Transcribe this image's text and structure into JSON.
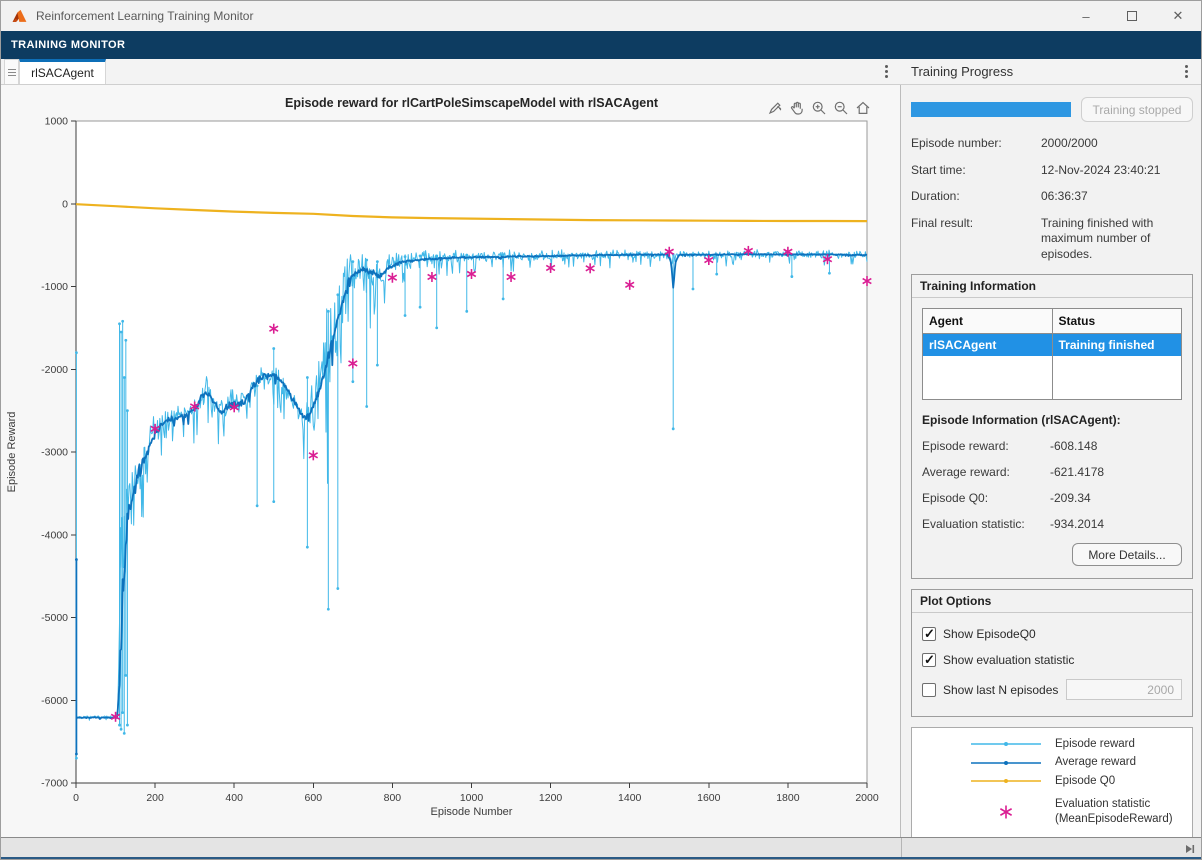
{
  "window": {
    "title": "Reinforcement Learning Training Monitor"
  },
  "ribbon": {
    "label": "TRAINING MONITOR"
  },
  "tabs": {
    "document_tab": "rlSACAgent"
  },
  "axes_toolbar": {
    "icons": [
      "export-icon",
      "pan-hand-icon",
      "zoom-in-icon",
      "zoom-out-icon",
      "home-icon"
    ]
  },
  "training_progress": {
    "title": "Training Progress",
    "progress_percent": 100,
    "stop_button_label": "Training stopped",
    "fields": [
      {
        "label": "Episode number:",
        "value": "2000/2000"
      },
      {
        "label": "Start time:",
        "value": "12-Nov-2024 23:40:21"
      },
      {
        "label": "Duration:",
        "value": "06:36:37"
      },
      {
        "label": "Final result:",
        "value": "Training finished with maximum number of episodes."
      }
    ]
  },
  "training_information": {
    "title": "Training Information",
    "table": {
      "columns": [
        "Agent",
        "Status"
      ],
      "rows": [
        {
          "agent": "rlSACAgent",
          "status": "Training finished",
          "selected": true
        }
      ]
    },
    "episode_info_title": "Episode Information (rlSACAgent):",
    "stats": [
      {
        "label": "Episode reward:",
        "value": "-608.148"
      },
      {
        "label": "Average reward:",
        "value": "-621.4178"
      },
      {
        "label": "Episode Q0:",
        "value": "-209.34"
      },
      {
        "label": "Evaluation statistic:",
        "value": "-934.2014"
      }
    ],
    "more_details_label": "More Details..."
  },
  "plot_options": {
    "title": "Plot Options",
    "checkboxes": [
      {
        "label": "Show EpisodeQ0",
        "checked": true
      },
      {
        "label": "Show evaluation statistic",
        "checked": true
      },
      {
        "label": "Show last N episodes",
        "checked": false
      }
    ],
    "last_n_value": "2000"
  },
  "legend": {
    "entries": [
      {
        "label": "Episode reward",
        "color": "#41b8e8",
        "marker": "line-dot"
      },
      {
        "label": "Average reward",
        "color": "#0d72bd",
        "marker": "line-dot"
      },
      {
        "label": "Episode Q0",
        "color": "#eeb21f",
        "marker": "line-dot"
      },
      {
        "label": "Evaluation statistic",
        "label2": "(MeanEpisodeReward)",
        "color": "#da1e93",
        "marker": "asterisk"
      }
    ]
  },
  "chart_data": {
    "type": "line",
    "title": "Episode reward for rlCartPoleSimscapeModel with rlSACAgent",
    "xlabel": "Episode Number",
    "ylabel": "Episode Reward",
    "xlim": [
      0,
      2000
    ],
    "ylim": [
      -7000,
      1000
    ],
    "xticks": [
      0,
      200,
      400,
      600,
      800,
      1000,
      1200,
      1400,
      1600,
      1800,
      2000
    ],
    "yticks": [
      1000,
      0,
      -1000,
      -2000,
      -3000,
      -4000,
      -5000,
      -6000,
      -7000
    ],
    "grid": false,
    "legend_position": "external-panel",
    "series": [
      {
        "name": "Episode reward",
        "color": "#41b8e8",
        "kind": "noisy-line",
        "anchors": [
          [
            0,
            -6200,
            40
          ],
          [
            105,
            -6200,
            40
          ],
          [
            112,
            -4500,
            1800
          ],
          [
            130,
            -3700,
            900
          ],
          [
            160,
            -3200,
            700
          ],
          [
            200,
            -2750,
            500
          ],
          [
            240,
            -2600,
            450
          ],
          [
            280,
            -2550,
            420
          ],
          [
            300,
            -2450,
            420
          ],
          [
            330,
            -2280,
            450
          ],
          [
            355,
            -2500,
            500
          ],
          [
            380,
            -2430,
            480
          ],
          [
            410,
            -2430,
            450
          ],
          [
            440,
            -2260,
            400
          ],
          [
            470,
            -2090,
            350
          ],
          [
            500,
            -2080,
            320
          ],
          [
            530,
            -2230,
            380
          ],
          [
            560,
            -2500,
            500
          ],
          [
            585,
            -2570,
            600
          ],
          [
            605,
            -2380,
            900
          ],
          [
            625,
            -2050,
            1400
          ],
          [
            645,
            -1700,
            1600
          ],
          [
            665,
            -1250,
            1500
          ],
          [
            685,
            -950,
            900
          ],
          [
            705,
            -820,
            600
          ],
          [
            730,
            -800,
            650
          ],
          [
            760,
            -880,
            650
          ],
          [
            790,
            -760,
            450
          ],
          [
            820,
            -680,
            300
          ],
          [
            860,
            -660,
            250
          ],
          [
            900,
            -650,
            220
          ],
          [
            950,
            -640,
            200
          ],
          [
            1000,
            -635,
            190
          ],
          [
            1100,
            -630,
            170
          ],
          [
            1200,
            -625,
            160
          ],
          [
            1300,
            -620,
            150
          ],
          [
            1400,
            -615,
            150
          ],
          [
            1500,
            -612,
            140
          ],
          [
            1600,
            -615,
            130
          ],
          [
            1700,
            -610,
            130
          ],
          [
            1800,
            -612,
            130
          ],
          [
            1900,
            -610,
            140
          ],
          [
            2000,
            -608,
            130
          ]
        ],
        "spikes": [
          [
            1,
            -1800,
            -6700
          ],
          [
            110,
            -1450,
            -6300
          ],
          [
            114,
            -1550,
            -6350
          ],
          [
            118,
            -1420,
            -6150
          ],
          [
            122,
            -2100,
            -6400
          ],
          [
            126,
            -1650,
            -5700
          ],
          [
            130,
            -2500,
            -6300
          ],
          [
            458,
            -2200,
            -3650
          ],
          [
            500,
            -1750,
            -3600
          ],
          [
            585,
            -2100,
            -4150
          ],
          [
            638,
            -1300,
            -4900
          ],
          [
            662,
            -1100,
            -4650
          ],
          [
            700,
            -700,
            -2150
          ],
          [
            735,
            -680,
            -2450
          ],
          [
            762,
            -700,
            -1950
          ],
          [
            832,
            -640,
            -1350
          ],
          [
            870,
            -630,
            -1250
          ],
          [
            912,
            -630,
            -1500
          ],
          [
            988,
            -620,
            -1300
          ],
          [
            1080,
            -620,
            -1150
          ],
          [
            1510,
            -612,
            -2720
          ],
          [
            1560,
            -615,
            -1030
          ],
          [
            1620,
            -615,
            -850
          ],
          [
            1810,
            -612,
            -880
          ],
          [
            1905,
            -610,
            -840
          ]
        ]
      },
      {
        "name": "Average reward",
        "color": "#0d72bd",
        "kind": "noisy-line",
        "anchors": [
          [
            0,
            -6210,
            15
          ],
          [
            105,
            -6210,
            15
          ],
          [
            109,
            -5900,
            600
          ],
          [
            113,
            -5400,
            900
          ],
          [
            118,
            -4900,
            1100
          ],
          [
            124,
            -4400,
            1000
          ],
          [
            130,
            -3800,
            500
          ],
          [
            140,
            -3650,
            300
          ],
          [
            155,
            -3300,
            250
          ],
          [
            175,
            -3050,
            200
          ],
          [
            200,
            -2760,
            150
          ],
          [
            230,
            -2620,
            120
          ],
          [
            260,
            -2590,
            110
          ],
          [
            285,
            -2540,
            110
          ],
          [
            305,
            -2430,
            120
          ],
          [
            330,
            -2270,
            120
          ],
          [
            350,
            -2420,
            130
          ],
          [
            368,
            -2540,
            120
          ],
          [
            385,
            -2430,
            120
          ],
          [
            405,
            -2430,
            120
          ],
          [
            425,
            -2400,
            110
          ],
          [
            445,
            -2230,
            110
          ],
          [
            465,
            -2110,
            100
          ],
          [
            485,
            -2050,
            90
          ],
          [
            505,
            -2090,
            90
          ],
          [
            525,
            -2170,
            100
          ],
          [
            545,
            -2330,
            110
          ],
          [
            565,
            -2520,
            110
          ],
          [
            580,
            -2600,
            110
          ],
          [
            595,
            -2500,
            110
          ],
          [
            610,
            -2330,
            140
          ],
          [
            622,
            -2150,
            200
          ],
          [
            635,
            -1900,
            250
          ],
          [
            648,
            -1680,
            260
          ],
          [
            660,
            -1450,
            260
          ],
          [
            672,
            -1220,
            240
          ],
          [
            684,
            -1020,
            200
          ],
          [
            696,
            -880,
            150
          ],
          [
            710,
            -830,
            110
          ],
          [
            730,
            -790,
            100
          ],
          [
            750,
            -830,
            110
          ],
          [
            770,
            -870,
            100
          ],
          [
            790,
            -780,
            80
          ],
          [
            815,
            -710,
            60
          ],
          [
            845,
            -690,
            50
          ],
          [
            880,
            -670,
            40
          ],
          [
            920,
            -660,
            35
          ],
          [
            970,
            -650,
            30
          ],
          [
            1030,
            -645,
            28
          ],
          [
            1100,
            -638,
            26
          ],
          [
            1200,
            -630,
            24
          ],
          [
            1300,
            -622,
            22
          ],
          [
            1400,
            -617,
            20
          ],
          [
            1495,
            -612,
            18
          ],
          [
            1505,
            -700,
            60
          ],
          [
            1510,
            -1020,
            30
          ],
          [
            1516,
            -700,
            60
          ],
          [
            1525,
            -615,
            18
          ],
          [
            1600,
            -616,
            16
          ],
          [
            1700,
            -611,
            16
          ],
          [
            1800,
            -614,
            16
          ],
          [
            1900,
            -612,
            16
          ],
          [
            2000,
            -621,
            14
          ]
        ],
        "spikes": [
          [
            1,
            -4300,
            -6650
          ]
        ]
      },
      {
        "name": "Episode Q0",
        "color": "#eeb21f",
        "kind": "smooth-line",
        "points": [
          [
            0,
            -5
          ],
          [
            100,
            -30
          ],
          [
            200,
            -55
          ],
          [
            300,
            -75
          ],
          [
            400,
            -95
          ],
          [
            500,
            -110
          ],
          [
            600,
            -122
          ],
          [
            700,
            -148
          ],
          [
            800,
            -165
          ],
          [
            900,
            -173
          ],
          [
            1000,
            -180
          ],
          [
            1100,
            -186
          ],
          [
            1200,
            -192
          ],
          [
            1300,
            -197
          ],
          [
            1400,
            -200
          ],
          [
            1500,
            -203
          ],
          [
            1600,
            -205
          ],
          [
            1700,
            -207
          ],
          [
            1800,
            -208
          ],
          [
            1900,
            -209
          ],
          [
            2000,
            -210
          ]
        ]
      },
      {
        "name": "Evaluation statistic (MeanEpisodeReward)",
        "color": "#da1e93",
        "kind": "scatter-asterisk",
        "points": [
          [
            100,
            -6200
          ],
          [
            200,
            -2720
          ],
          [
            300,
            -2450
          ],
          [
            400,
            -2460
          ],
          [
            500,
            -1510
          ],
          [
            600,
            -3040
          ],
          [
            700,
            -1930
          ],
          [
            800,
            -894
          ],
          [
            900,
            -885
          ],
          [
            1000,
            -849
          ],
          [
            1100,
            -885
          ],
          [
            1200,
            -776
          ],
          [
            1300,
            -780
          ],
          [
            1400,
            -980
          ],
          [
            1500,
            -580
          ],
          [
            1600,
            -680
          ],
          [
            1700,
            -570
          ],
          [
            1800,
            -580
          ],
          [
            1900,
            -670
          ],
          [
            2000,
            -934
          ]
        ]
      }
    ]
  }
}
